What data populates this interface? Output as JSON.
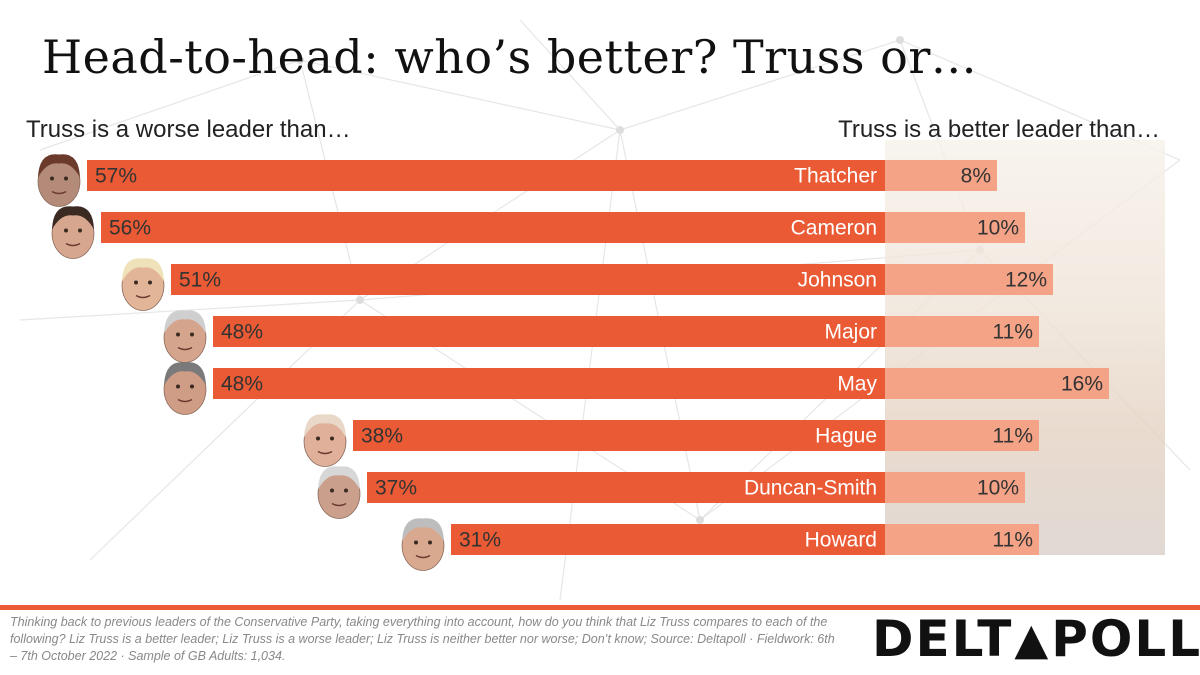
{
  "title": "Head-to-head: who’s better? Truss or…",
  "left_heading": "Truss is a worse leader than…",
  "right_heading": "Truss is a better leader than…",
  "footnote": "Thinking back to previous leaders of the Conservative Party, taking everything into account, how do you think that Liz Truss compares to each of the following? Liz Truss is a better leader; Liz Truss is a worse leader; Liz Truss is neither better nor worse; Don’t know; Source: Deltapoll · Fieldwork: 6th – 7th October 2022 · Sample of GB Adults: 1,034.",
  "brand": {
    "part1": "DELT",
    "mark": "▲",
    "part2": "POLL"
  },
  "colors": {
    "worse": "#ea5a34",
    "better": "#f4a387",
    "accent": "#ea5a34",
    "label": "#ffffff",
    "value_text": "#333333"
  },
  "chart_data": {
    "type": "bar",
    "orientation": "horizontal-diverging",
    "categories": [
      "Thatcher",
      "Cameron",
      "Johnson",
      "Major",
      "May",
      "Hague",
      "Duncan-Smith",
      "Howard"
    ],
    "series": [
      {
        "name": "Truss is a worse leader than…",
        "values": [
          57,
          56,
          51,
          48,
          48,
          38,
          37,
          31
        ],
        "labels": [
          "57%",
          "56%",
          "51%",
          "48%",
          "48%",
          "38%",
          "37%",
          "31%"
        ]
      },
      {
        "name": "Truss is a better leader than…",
        "values": [
          8,
          10,
          12,
          11,
          16,
          11,
          10,
          11
        ],
        "labels": [
          "8%",
          "10%",
          "12%",
          "11%",
          "16%",
          "11%",
          "10%",
          "11%"
        ]
      }
    ],
    "unit": "%",
    "portraits": [
      "thatcher-portrait",
      "cameron-portrait",
      "johnson-portrait",
      "major-portrait",
      "may-portrait",
      "hague-portrait",
      "duncan-smith-portrait",
      "howard-portrait"
    ]
  }
}
